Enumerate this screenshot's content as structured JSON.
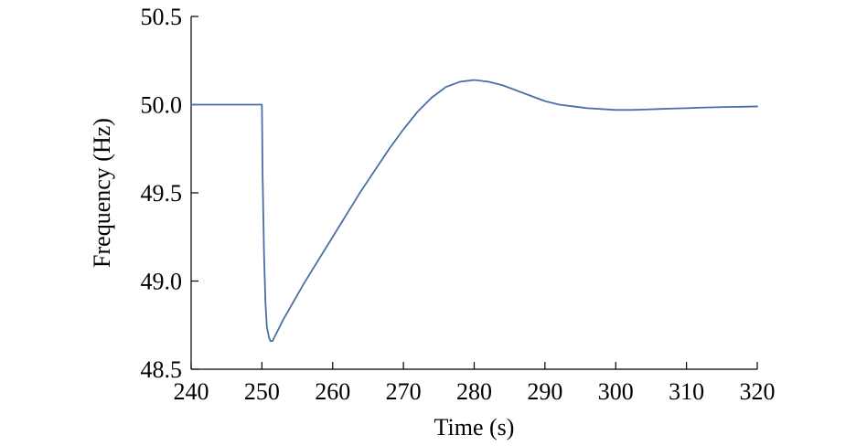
{
  "chart_data": {
    "type": "line",
    "title": "",
    "xlabel": "Time (s)",
    "ylabel": "Frequency (Hz)",
    "xlim": [
      240,
      320
    ],
    "ylim": [
      48.5,
      50.5
    ],
    "xticks": [
      240,
      250,
      260,
      270,
      280,
      290,
      300,
      310,
      320
    ],
    "xtick_labels": [
      "240",
      "250",
      "260",
      "270",
      "280",
      "290",
      "300",
      "310",
      "320"
    ],
    "yticks": [
      48.5,
      49.0,
      49.5,
      50.0,
      50.5
    ],
    "ytick_labels": [
      "48.5",
      "49.0",
      "49.5",
      "50.0",
      "50.5"
    ],
    "grid": false,
    "legend": "none",
    "series": [
      {
        "color": "#4a6fa5",
        "x": [
          240,
          250,
          250.1,
          250.3,
          250.5,
          250.7,
          251.0,
          251.2,
          251.5,
          252,
          253,
          254,
          255,
          256,
          258,
          260,
          262,
          264,
          266,
          268,
          270,
          272,
          274,
          276,
          278,
          280,
          282,
          284,
          286,
          288,
          290,
          292,
          294,
          296,
          298,
          300,
          302,
          304,
          306,
          308,
          310,
          312,
          314,
          316,
          318,
          320
        ],
        "y": [
          50.0,
          50.0,
          49.6,
          49.15,
          48.88,
          48.74,
          48.68,
          48.66,
          48.66,
          48.7,
          48.78,
          48.85,
          48.92,
          48.99,
          49.12,
          49.25,
          49.38,
          49.51,
          49.63,
          49.75,
          49.86,
          49.96,
          50.04,
          50.1,
          50.13,
          50.14,
          50.13,
          50.11,
          50.08,
          50.05,
          50.02,
          50.0,
          49.99,
          49.98,
          49.975,
          49.97,
          49.97,
          49.972,
          49.975,
          49.978,
          49.98,
          49.983,
          49.985,
          49.987,
          49.988,
          49.99
        ]
      }
    ]
  }
}
